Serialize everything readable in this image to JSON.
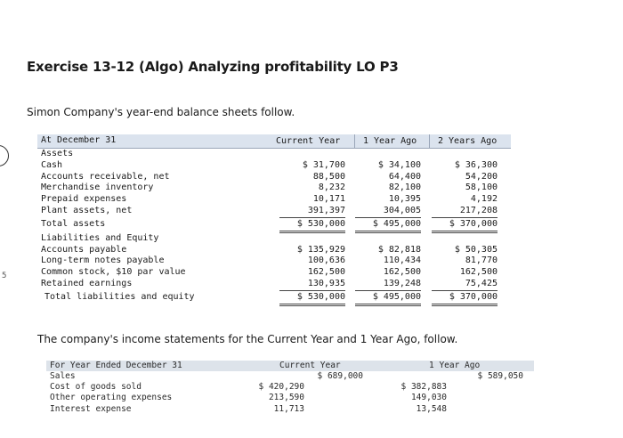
{
  "title": "Exercise 13-12 (Algo) Analyzing profitability LO P3",
  "intro": "Simon Company's year-end balance sheets follow.",
  "balance_sheet": {
    "headers": {
      "label": "At December 31",
      "col1": "Current Year",
      "col2": "1 Year Ago",
      "col3": "2 Years Ago"
    },
    "rows": [
      {
        "label": "Assets",
        "c1": "",
        "c2": "",
        "c3": ""
      },
      {
        "label": "Cash",
        "c1": "$ 31,700",
        "c2": "$ 34,100",
        "c3": "$ 36,300"
      },
      {
        "label": "Accounts receivable, net",
        "c1": "88,500",
        "c2": "64,400",
        "c3": "54,200"
      },
      {
        "label": "Merchandise inventory",
        "c1": "8,232",
        "c2": "82,100",
        "c3": "58,100"
      },
      {
        "label": "Prepaid expenses",
        "c1": "10,171",
        "c2": "10,395",
        "c3": "4,192"
      },
      {
        "label": "Plant assets, net",
        "c1": "391,397",
        "c2": "304,005",
        "c3": "217,208"
      },
      {
        "label": "Total assets",
        "c1": "$ 530,000",
        "c2": "$ 495,000",
        "c3": "$ 370,000"
      },
      {
        "label": "Liabilities and Equity",
        "c1": "",
        "c2": "",
        "c3": ""
      },
      {
        "label": "Accounts payable",
        "c1": "$ 135,929",
        "c2": "$ 82,818",
        "c3": "$ 50,305"
      },
      {
        "label": "Long-term notes payable",
        "c1": "100,636",
        "c2": "110,434",
        "c3": "81,770"
      },
      {
        "label": "Common stock, $10 par value",
        "c1": "162,500",
        "c2": "162,500",
        "c3": "162,500"
      },
      {
        "label": "Retained earnings",
        "c1": "130,935",
        "c2": "139,248",
        "c3": "75,425"
      },
      {
        "label": "Total liabilities and equity",
        "c1": "$ 530,000",
        "c2": "$ 495,000",
        "c3": "$ 370,000"
      }
    ]
  },
  "between_text": "The company's income statements for the Current Year and 1 Year Ago, follow.",
  "income_statement": {
    "headers": {
      "label": "For Year Ended December 31",
      "current": "Current Year",
      "prior": "1 Year Ago"
    },
    "rows": [
      {
        "label": "Sales",
        "cur_detail": "",
        "cur_total": "$ 689,000",
        "prior_detail": "",
        "prior_total": "$ 589,050"
      },
      {
        "label": "Cost of goods sold",
        "cur_detail": "$ 420,290",
        "cur_total": "",
        "prior_detail": "$ 382,883",
        "prior_total": ""
      },
      {
        "label": "Other operating expenses",
        "cur_detail": "213,590",
        "cur_total": "",
        "prior_detail": "149,030",
        "prior_total": ""
      },
      {
        "label": "Interest expense",
        "cur_detail": "11,713",
        "cur_total": "",
        "prior_detail": "13,548",
        "prior_total": ""
      }
    ]
  }
}
